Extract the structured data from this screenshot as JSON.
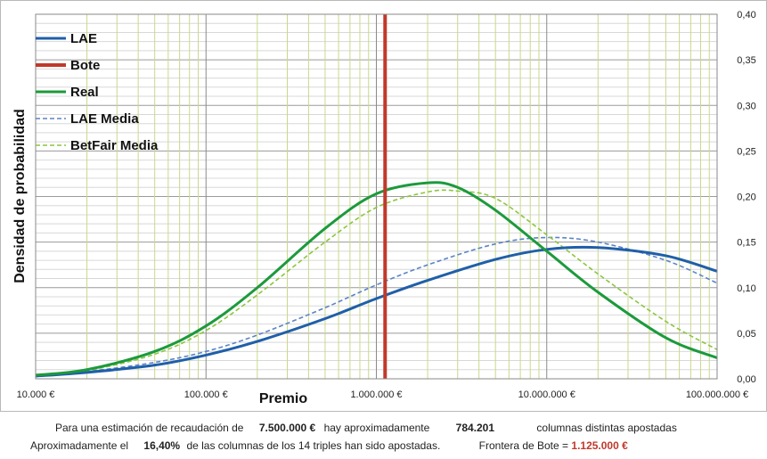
{
  "chart_data": {
    "type": "line",
    "x_scale": "log",
    "xlabel": "Premio",
    "ylabel": "Densidad de probabilidad",
    "xlim": [
      10000,
      100000000
    ],
    "ylim": [
      0,
      0.4
    ],
    "x_tick_values": [
      10000,
      100000,
      1000000,
      10000000,
      100000000
    ],
    "x_tick_labels": [
      "10.000 €",
      "100.000 €",
      "1.000.000 €",
      "10.000.000 €",
      "100.000.000 €"
    ],
    "y_tick_values": [
      0,
      0.05,
      0.1,
      0.15,
      0.2,
      0.25,
      0.3,
      0.35,
      0.4
    ],
    "y_tick_labels": [
      "0,00",
      "0,05",
      "0,10",
      "0,15",
      "0,20",
      "0,25",
      "0,30",
      "0,35",
      "0,40"
    ],
    "vertical_line": {
      "name": "Bote",
      "x": 1125000,
      "color": "#c0392b"
    },
    "series": [
      {
        "name": "LAE",
        "color": "#1f5fa8",
        "style": "solid",
        "x": [
          10000,
          20000,
          50000,
          100000,
          200000,
          500000,
          1000000,
          2000000,
          5000000,
          10000000,
          20000000,
          50000000,
          100000000
        ],
        "values": [
          0.003,
          0.007,
          0.015,
          0.026,
          0.041,
          0.066,
          0.088,
          0.108,
          0.131,
          0.142,
          0.144,
          0.135,
          0.118
        ]
      },
      {
        "name": "Real",
        "color": "#1c9a3c",
        "style": "solid",
        "x": [
          10000,
          20000,
          50000,
          100000,
          200000,
          500000,
          1000000,
          2000000,
          3000000,
          5000000,
          10000000,
          20000000,
          50000000,
          100000000
        ],
        "values": [
          0.004,
          0.01,
          0.03,
          0.058,
          0.1,
          0.165,
          0.203,
          0.215,
          0.21,
          0.185,
          0.14,
          0.095,
          0.045,
          0.023
        ]
      },
      {
        "name": "LAE Media",
        "color": "#5a84c8",
        "style": "dashed",
        "x": [
          10000,
          20000,
          50000,
          100000,
          200000,
          500000,
          1000000,
          2000000,
          5000000,
          10000000,
          20000000,
          50000000,
          100000000
        ],
        "values": [
          0.004,
          0.008,
          0.018,
          0.03,
          0.048,
          0.078,
          0.103,
          0.125,
          0.148,
          0.155,
          0.15,
          0.13,
          0.105
        ]
      },
      {
        "name": "BetFair Media",
        "color": "#8cc63f",
        "style": "dashed",
        "x": [
          10000,
          20000,
          50000,
          100000,
          200000,
          500000,
          1000000,
          2000000,
          3000000,
          5000000,
          10000000,
          20000000,
          50000000,
          100000000
        ],
        "values": [
          0.004,
          0.009,
          0.027,
          0.053,
          0.092,
          0.15,
          0.188,
          0.205,
          0.206,
          0.198,
          0.158,
          0.115,
          0.063,
          0.032
        ]
      }
    ],
    "legend": {
      "placement": "top-left",
      "entries": [
        "LAE",
        "Bote",
        "Real",
        "LAE Media",
        "BetFair Media"
      ]
    },
    "grid": true
  },
  "footer": {
    "line1": {
      "prefix": "Para  una estimación de recaudación de",
      "recaudacion": "7.500.000 €",
      "mid": "hay aproximadamente",
      "columnas": "784.201",
      "suffix": "columnas distintas apostadas"
    },
    "line2": {
      "prefix": "Aproximadamente el",
      "porcentaje": "16,40%",
      "mid": "de las columnas de los 14 triples han sido apostadas.",
      "frontera_label": "Frontera de Bote =",
      "frontera_value": "1.125.000 €"
    }
  }
}
